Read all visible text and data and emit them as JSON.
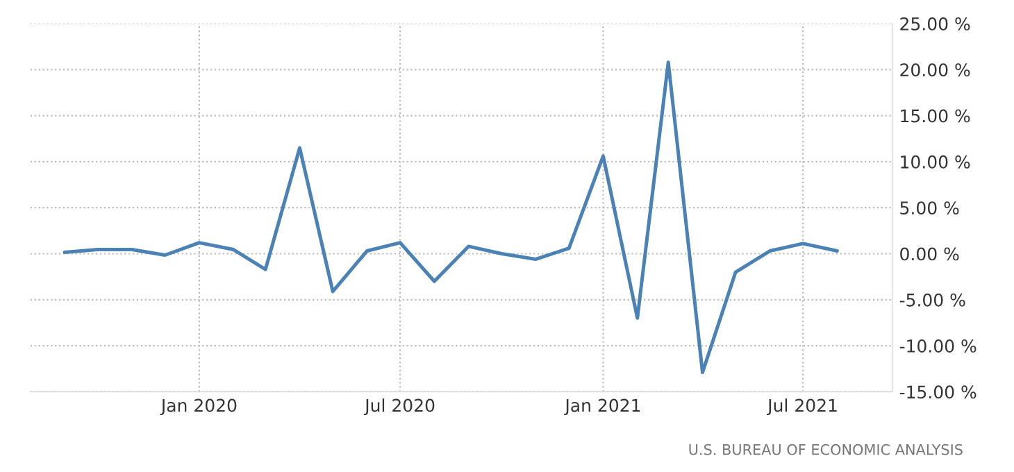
{
  "chart_data": {
    "type": "line",
    "x": [
      "2019-09",
      "2019-10",
      "2019-11",
      "2019-12",
      "2020-01",
      "2020-02",
      "2020-03",
      "2020-04",
      "2020-05",
      "2020-06",
      "2020-07",
      "2020-08",
      "2020-09",
      "2020-10",
      "2020-11",
      "2020-12",
      "2021-01",
      "2021-02",
      "2021-03",
      "2021-04",
      "2021-05",
      "2021-06",
      "2021-07",
      "2021-08"
    ],
    "series": [
      {
        "color": "#4a82b6",
        "values": [
          0.15,
          0.45,
          0.45,
          -0.15,
          1.2,
          0.45,
          -1.7,
          11.5,
          -4.1,
          0.3,
          1.2,
          -3.0,
          0.8,
          0.0,
          -0.6,
          0.6,
          10.6,
          -7.0,
          20.8,
          -12.9,
          -2.0,
          0.3,
          1.1,
          0.3
        ]
      }
    ],
    "xlim": [
      "2019-08-01",
      "2021-09-20"
    ],
    "xticks": [
      {
        "value": "2020-01",
        "label": "Jan 2020"
      },
      {
        "value": "2020-07",
        "label": "Jul 2020"
      },
      {
        "value": "2021-01",
        "label": "Jan 2021"
      },
      {
        "value": "2021-07",
        "label": "Jul 2021"
      }
    ],
    "ylim": [
      -15,
      25
    ],
    "yticks": [
      {
        "value": -15,
        "label": "-15.00 %"
      },
      {
        "value": -10,
        "label": "-10.00 %"
      },
      {
        "value": -5,
        "label": "-5.00 %"
      },
      {
        "value": 0,
        "label": "0.00 %"
      },
      {
        "value": 5,
        "label": "5.00 %"
      },
      {
        "value": 10,
        "label": "10.00 %"
      },
      {
        "value": 15,
        "label": "15.00 %"
      },
      {
        "value": 20,
        "label": "20.00 %"
      },
      {
        "value": 25,
        "label": "25.00 %"
      }
    ],
    "grid": true,
    "line_style": "solid",
    "annotations": [
      "U.S. BUREAU OF ECONOMIC ANALYSIS"
    ]
  }
}
